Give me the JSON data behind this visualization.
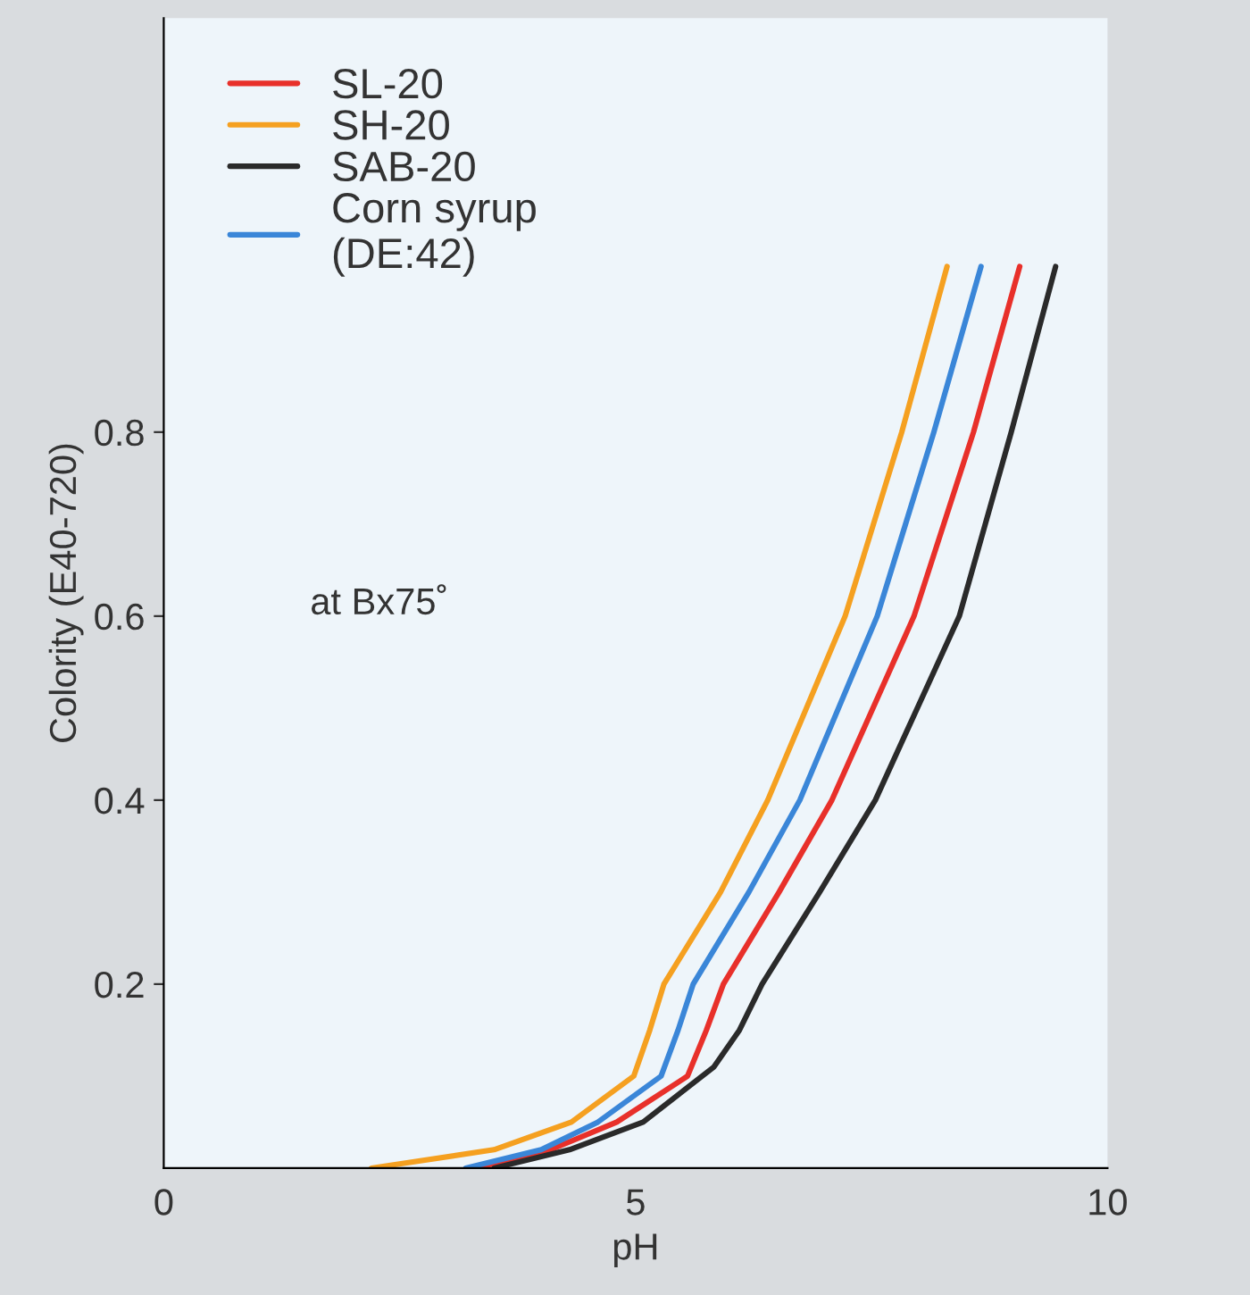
{
  "chart_data": {
    "type": "line",
    "xlabel": "pH",
    "ylabel": "Colority (E40-720)",
    "xlim": [
      0,
      10
    ],
    "xticks": [
      0,
      5,
      10
    ],
    "ylim": [
      0,
      1.25
    ],
    "yticks": [
      0.2,
      0.4,
      0.6,
      0.8
    ],
    "grid": false,
    "legend": "top left",
    "marker": "none",
    "line_style": "solid",
    "annotations": [
      "at Bx75˚"
    ],
    "series": [
      {
        "name": "SL-20",
        "color": "#e8302a",
        "x": [
          3.3,
          4.1,
          4.8,
          5.55,
          5.75,
          5.93,
          6.52,
          7.08,
          7.95,
          8.58,
          9.07
        ],
        "values": [
          0,
          0.02,
          0.05,
          0.1,
          0.15,
          0.2,
          0.3,
          0.4,
          0.6,
          0.8,
          0.98
        ]
      },
      {
        "name": "SH-20",
        "color": "#f5a020",
        "x": [
          2.2,
          3.5,
          4.32,
          4.98,
          5.15,
          5.3,
          5.9,
          6.4,
          7.22,
          7.82,
          8.3
        ],
        "values": [
          0,
          0.02,
          0.05,
          0.1,
          0.15,
          0.2,
          0.3,
          0.4,
          0.6,
          0.8,
          0.98
        ]
      },
      {
        "name": "SAB-20",
        "color": "#2a2a2a",
        "x": [
          3.5,
          4.3,
          5.08,
          5.83,
          6.1,
          6.34,
          6.95,
          7.54,
          8.43,
          8.98,
          9.45
        ],
        "values": [
          0,
          0.02,
          0.05,
          0.11,
          0.15,
          0.2,
          0.3,
          0.4,
          0.6,
          0.8,
          0.98
        ]
      },
      {
        "name": "Corn syrup\n(DE:42)",
        "color": "#3a86d8",
        "x": [
          3.2,
          4.0,
          4.6,
          5.27,
          5.45,
          5.61,
          6.2,
          6.74,
          7.56,
          8.16,
          8.66
        ],
        "values": [
          0,
          0.02,
          0.05,
          0.1,
          0.15,
          0.2,
          0.3,
          0.4,
          0.6,
          0.8,
          0.98
        ]
      }
    ]
  }
}
